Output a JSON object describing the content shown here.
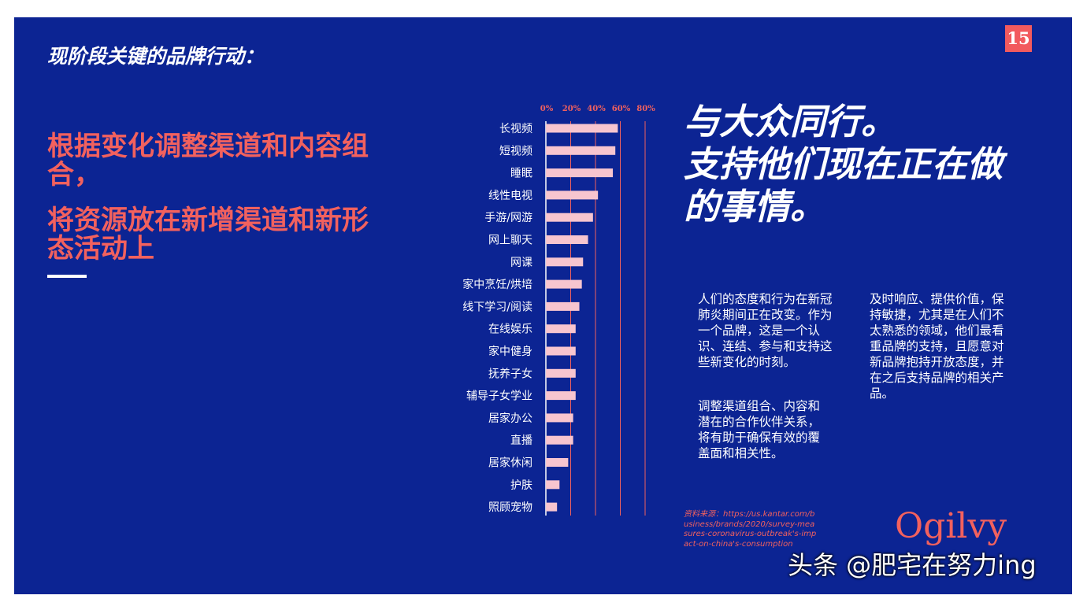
{
  "page": {
    "heading": "现阶段关键的品牌行动：",
    "page_number": "15",
    "red_title_1": "根据变化调整渠道和内容组合，",
    "red_title_2": "将资源放在新增渠道和新形态活动上",
    "headline_1": "与大众同行。",
    "headline_2": "支持他们现在正在做的事情。",
    "paragraph_1": "人们的态度和行为在新冠肺炎期间正在改变。作为一个品牌，这是一个认识、连结、参与和支持这些新变化的时刻。",
    "paragraph_2": "调整渠道组合、内容和潜在的合作伙伴关系，将有助于确保有效的覆盖面和相关性。",
    "paragraph_3": "及时响应、提供价值，保持敏捷，尤其是在人们不太熟悉的领域，他们最看重品牌的支持，且愿意对新品牌抱持开放态度，并在之后支持品牌的相关产品。",
    "source_text": "资料来源：https://us.kantar.com/business/brands/2020/survey-measures-coronavirus-outbreak's-impact-on-china's-consumption",
    "logo_text": "Ogilvy",
    "watermark": "头条 @肥宅在努力ing"
  },
  "colors": {
    "background": "#0c2493",
    "accent": "#f2615e",
    "bar": "#f7c5cf",
    "text": "#ffffff"
  },
  "chart_data": {
    "type": "bar",
    "orientation": "horizontal",
    "categories": [
      "长视频",
      "短视频",
      "睡眠",
      "线性电视",
      "手游/网游",
      "网上聊天",
      "网课",
      "家中烹饪/烘培",
      "线下学习/阅读",
      "在线娱乐",
      "家中健身",
      "抚养子女",
      "辅导子女学业",
      "居家办公",
      "直播",
      "居家休闲",
      "护肤",
      "照顾宠物"
    ],
    "values": [
      58,
      56,
      54,
      42,
      38,
      34,
      30,
      29,
      27,
      24,
      24,
      24,
      24,
      22,
      22,
      18,
      11,
      9
    ],
    "xlim": [
      0,
      80
    ],
    "ticks": [
      "0%",
      "20%",
      "40%",
      "60%",
      "80%"
    ],
    "tick_values": [
      0,
      20,
      40,
      60,
      80
    ],
    "grid": true,
    "legend": "none"
  }
}
